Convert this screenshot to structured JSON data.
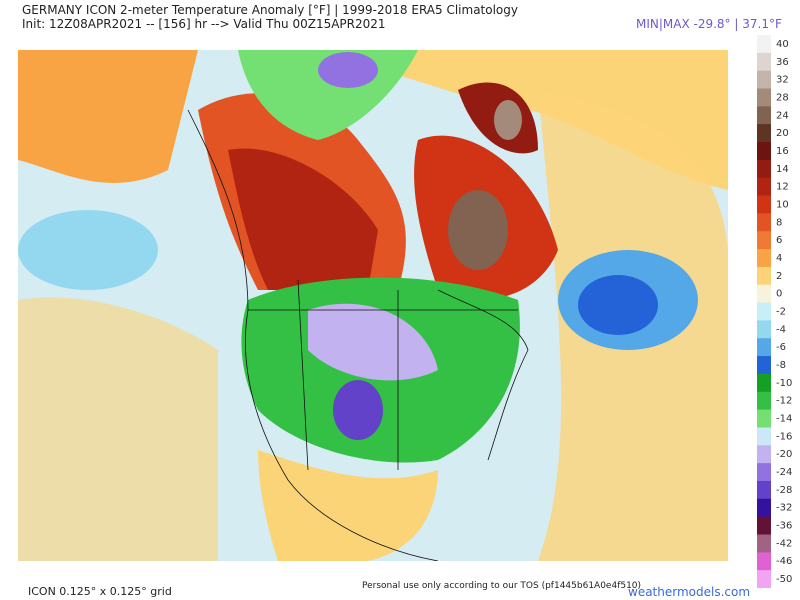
{
  "header": {
    "title": "GERMANY ICON 2-meter Temperature Anomaly [°F] | 1999-2018 ERA5 Climatology",
    "init": "Init: 12Z08APR2021 -- [156] hr --> Valid Thu 00Z15APR2021",
    "minmax": "MIN|MAX -29.8° | 37.1°F"
  },
  "colorbar": [
    {
      "label": "40",
      "color": "#f2f2f2"
    },
    {
      "label": "36",
      "color": "#ddd5d0"
    },
    {
      "label": "32",
      "color": "#c4b4aa"
    },
    {
      "label": "28",
      "color": "#a38a7a"
    },
    {
      "label": "24",
      "color": "#826250"
    },
    {
      "label": "20",
      "color": "#5e3424"
    },
    {
      "label": "16",
      "color": "#6e1410"
    },
    {
      "label": "14",
      "color": "#921c12"
    },
    {
      "label": "12",
      "color": "#b22412"
    },
    {
      "label": "10",
      "color": "#d03414"
    },
    {
      "label": "8",
      "color": "#e25424"
    },
    {
      "label": "6",
      "color": "#f07a34"
    },
    {
      "label": "4",
      "color": "#f8a444"
    },
    {
      "label": "2",
      "color": "#fcd478"
    },
    {
      "label": "0",
      "color": "#f6f2dc"
    },
    {
      "label": "-2",
      "color": "#c8eef8"
    },
    {
      "label": "-4",
      "color": "#94d8f0"
    },
    {
      "label": "-6",
      "color": "#54a8e8"
    },
    {
      "label": "-8",
      "color": "#2462d8"
    },
    {
      "label": "-10",
      "color": "#14a024"
    },
    {
      "label": "-12",
      "color": "#34c044"
    },
    {
      "label": "-14",
      "color": "#74e074"
    },
    {
      "label": "-16",
      "color": "#cce8f8"
    },
    {
      "label": "-20",
      "color": "#c2b2f0"
    },
    {
      "label": "-24",
      "color": "#9272e0"
    },
    {
      "label": "-28",
      "color": "#6242c8"
    },
    {
      "label": "-32",
      "color": "#3412a0"
    },
    {
      "label": "-36",
      "color": "#621232"
    },
    {
      "label": "-42",
      "color": "#a26282"
    },
    {
      "label": "-46",
      "color": "#e062d2"
    },
    {
      "label": "-50",
      "color": "#f2a4f2"
    }
  ],
  "footer": {
    "grid": "ICON 0.125° x 0.125° grid",
    "tos": "Personal use only according to our TOS (pf1445b61A0e4f510)",
    "site": "weathermodels.com"
  }
}
